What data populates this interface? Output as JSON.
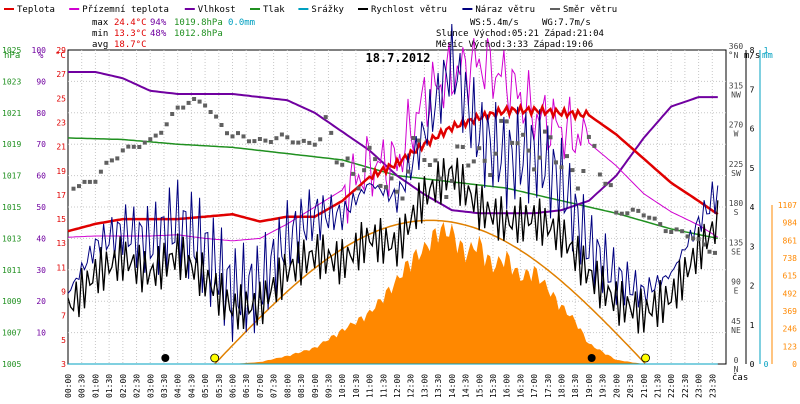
{
  "legend": [
    {
      "label": "Teplota",
      "color": "#e00000"
    },
    {
      "label": "Přízemní teplota",
      "color": "#d000d0"
    },
    {
      "label": "Vlhkost",
      "color": "#7000a0"
    },
    {
      "label": "Tlak",
      "color": "#209020"
    },
    {
      "label": "Srážky",
      "color": "#00a0c0"
    },
    {
      "label": "Rychlost větru",
      "color": "#000000"
    },
    {
      "label": "Náraz větru",
      "color": "#000080"
    },
    {
      "label": "Směr větru",
      "color": "#606060"
    }
  ],
  "stats": {
    "max": {
      "label": "max",
      "temp": "24.4°C",
      "hum": "94%",
      "press": "1019.8hPa",
      "rain": "0.0mm"
    },
    "min": {
      "label": "min",
      "temp": "13.3°C",
      "hum": "48%",
      "press": "1012.8hPa"
    },
    "avg": {
      "label": "avg",
      "temp": "18.7°C"
    },
    "ws": "WS:5.4m/s",
    "wg": "WG:7.7m/s",
    "sun": "Slunce Východ:05:21  Západ:21:04",
    "moon": "Měsíc  Východ:3:33  Západ:19:06"
  },
  "axis_units": {
    "hpa": "hPa",
    "pct": "%",
    "degc": "°C",
    "deg": "°",
    "ms": "m/s",
    "mm": "mm",
    "time": "čas"
  },
  "colors": {
    "temp": "#e00000",
    "ground": "#d000d0",
    "hum": "#7000a0",
    "press": "#209020",
    "rain": "#00a0c0",
    "wind": "#000000",
    "gust": "#000080",
    "dir": "#606060",
    "solar": "#ff8800",
    "sun_curve": "#e08000",
    "grid": "#c8c8c8"
  },
  "chart_data": {
    "type": "line",
    "title": "18.7.2012",
    "x_ticks": [
      "00:00",
      "00:30",
      "01:00",
      "01:30",
      "02:00",
      "02:30",
      "03:00",
      "03:30",
      "04:00",
      "04:30",
      "05:00",
      "05:30",
      "06:00",
      "06:30",
      "07:00",
      "07:30",
      "08:00",
      "08:30",
      "09:00",
      "09:30",
      "10:00",
      "10:30",
      "11:00",
      "11:30",
      "12:00",
      "12:30",
      "13:00",
      "13:30",
      "14:00",
      "14:30",
      "15:00",
      "15:30",
      "16:00",
      "16:30",
      "17:00",
      "17:30",
      "18:00",
      "18:30",
      "19:00",
      "19:30",
      "20:00",
      "20:30",
      "21:00",
      "21:30",
      "22:00",
      "22:30",
      "23:00",
      "23:30"
    ],
    "axes": {
      "pressure": {
        "ticks": [
          1005,
          1007,
          1009,
          1011,
          1013,
          1015,
          1017,
          1019,
          1021,
          1023,
          1025
        ],
        "range": [
          1005,
          1025
        ]
      },
      "humidity": {
        "ticks": [
          10,
          20,
          30,
          40,
          50,
          60,
          70,
          80,
          90,
          100
        ],
        "range": [
          0,
          100
        ]
      },
      "temperature": {
        "ticks": [
          3,
          5,
          7,
          9,
          11,
          13,
          15,
          17,
          19,
          21,
          23,
          25,
          27,
          29
        ],
        "range": [
          3,
          29
        ]
      },
      "direction": {
        "ticks": [
          {
            "deg": "0",
            "dir": "N"
          },
          {
            "deg": "45",
            "dir": "NE"
          },
          {
            "deg": "90",
            "dir": "E"
          },
          {
            "deg": "135",
            "dir": "SE"
          },
          {
            "deg": "180",
            "dir": "S"
          },
          {
            "deg": "225",
            "dir": "SW"
          },
          {
            "deg": "270",
            "dir": "W"
          },
          {
            "deg": "315",
            "dir": "NW"
          },
          {
            "deg": "360",
            "dir": "N"
          }
        ],
        "range": [
          0,
          360
        ]
      },
      "wind": {
        "ticks": [
          0,
          1,
          2,
          3,
          4,
          5,
          6,
          7,
          8
        ],
        "range": [
          0,
          8
        ]
      },
      "rain": {
        "ticks": [
          0,
          1
        ],
        "range": [
          0,
          1
        ]
      },
      "solar": {
        "ticks": [
          0,
          123,
          246,
          369,
          492,
          615,
          738,
          861,
          984,
          1107
        ],
        "range": [
          0,
          1107
        ]
      }
    },
    "series": [
      {
        "name": "Teplota",
        "unit": "°C",
        "x": [
          0,
          1,
          2,
          3,
          4,
          5,
          6,
          7,
          8,
          9,
          10,
          11,
          12,
          13,
          14,
          15,
          16,
          17,
          18,
          19,
          20,
          21,
          22,
          23,
          23.7
        ],
        "values": [
          14,
          14.6,
          15,
          15,
          15,
          15.2,
          15.4,
          14.8,
          15.2,
          15.2,
          16.5,
          18.5,
          19.6,
          21.2,
          22.6,
          23.4,
          24,
          24,
          23.8,
          23.6,
          22,
          20,
          18,
          16.5,
          15.4
        ]
      },
      {
        "name": "Přízemní teplota",
        "unit": "°C",
        "x": [
          0,
          1,
          2,
          3,
          4,
          5,
          6,
          7,
          8,
          9,
          10,
          11,
          12,
          13,
          14,
          15,
          16,
          17,
          18,
          19,
          20,
          21,
          22,
          23,
          23.7
        ],
        "values": [
          13.5,
          13.6,
          13.6,
          13.6,
          13.7,
          13.4,
          13.2,
          13.4,
          14.6,
          16,
          17.4,
          19.4,
          19.6,
          25,
          27,
          28,
          26.5,
          23.6,
          22.5,
          21.3,
          19.4,
          17.1,
          15.6,
          14.5,
          13.5
        ]
      },
      {
        "name": "Vlhkost",
        "unit": "%",
        "x": [
          0,
          1,
          2,
          3,
          4,
          5,
          6,
          7,
          8,
          9,
          10,
          11,
          12,
          13,
          14,
          15,
          16,
          17,
          18,
          19,
          20,
          21,
          22,
          23,
          23.7
        ],
        "values": [
          93,
          93,
          91,
          87,
          86,
          86,
          86,
          85,
          84,
          80,
          74,
          68,
          60,
          54,
          49,
          48,
          48,
          48,
          49,
          52,
          60,
          72,
          82,
          85,
          85
        ]
      },
      {
        "name": "Tlak",
        "unit": "hPa",
        "x": [
          0,
          2,
          4,
          6,
          8,
          10,
          12,
          14,
          16,
          18,
          20,
          22,
          23.7
        ],
        "values": [
          1019.4,
          1019.3,
          1019.0,
          1018.8,
          1018.4,
          1018.0,
          1017.0,
          1016.6,
          1016.2,
          1015.4,
          1014.6,
          1013.6,
          1013.0
        ]
      },
      {
        "name": "Srážky",
        "unit": "mm",
        "x": [
          0,
          23.7
        ],
        "values": [
          0,
          0
        ]
      },
      {
        "name": "Rychlost větru",
        "unit": "m/s",
        "x": [
          0,
          1,
          2,
          3,
          4,
          5,
          6,
          7,
          8,
          9,
          10,
          11,
          12,
          13,
          14,
          15,
          16,
          17,
          18,
          19,
          20,
          21,
          22,
          23,
          23.7
        ],
        "values": [
          1.4,
          2.3,
          2.7,
          2.3,
          2.8,
          2.2,
          1.4,
          1.5,
          2.4,
          2.8,
          2.6,
          3.2,
          3.0,
          4.3,
          4.9,
          4.0,
          3.6,
          3.7,
          3.3,
          2.3,
          1.6,
          1.3,
          1.7,
          2.9,
          3.6
        ]
      },
      {
        "name": "Náraz větru",
        "unit": "m/s",
        "x": [
          0,
          1,
          2,
          3,
          4,
          5,
          6,
          7,
          8,
          9,
          10,
          11,
          12,
          13,
          14,
          15,
          16,
          17,
          18,
          19,
          20,
          21,
          22,
          23,
          23.7
        ],
        "values": [
          1.8,
          3.0,
          3.4,
          3.1,
          3.6,
          2.9,
          1.8,
          2.0,
          3.2,
          3.8,
          3.8,
          4.6,
          4.2,
          5.9,
          7.7,
          5.8,
          5.2,
          5.4,
          4.6,
          3.0,
          2.2,
          1.8,
          2.3,
          3.6,
          4.4
        ]
      },
      {
        "name": "Směr větru",
        "unit": "°",
        "x": [
          0,
          1,
          2,
          3,
          4,
          5,
          6,
          7,
          8,
          9,
          10,
          11,
          12,
          13,
          14,
          15,
          16,
          17,
          18,
          19,
          20,
          21,
          22,
          23,
          23.7
        ],
        "values": [
          205,
          210,
          248,
          252,
          295,
          300,
          259,
          258,
          257,
          255,
          240,
          215,
          210,
          240,
          215,
          242,
          255,
          255,
          225,
          240,
          180,
          170,
          155,
          140,
          130
        ]
      },
      {
        "name": "Sluneční záření",
        "unit": "W/m²",
        "x": [
          6,
          7,
          8,
          9,
          10,
          11,
          12,
          12.5,
          13,
          13.5,
          14,
          14.5,
          15,
          15.5,
          16,
          16.5,
          17,
          17.5,
          18,
          18.5,
          19,
          20,
          21
        ],
        "values": [
          0,
          15,
          60,
          120,
          250,
          380,
          620,
          780,
          850,
          1000,
          980,
          820,
          900,
          720,
          800,
          640,
          700,
          560,
          430,
          320,
          150,
          30,
          0
        ]
      }
    ],
    "events": {
      "moonrise": "3:33",
      "sunrise": "05:21",
      "moonset": "19:06",
      "sunset": "21:04"
    }
  }
}
